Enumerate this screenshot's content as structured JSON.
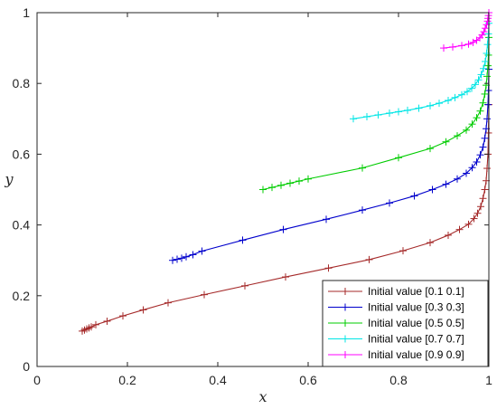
{
  "chart_data": {
    "type": "line",
    "xlabel": "x",
    "ylabel": "y",
    "xlim": [
      0,
      1
    ],
    "ylim": [
      0,
      1
    ],
    "xticks": [
      "0",
      "0.2",
      "0.4",
      "0.6",
      "0.8",
      "1"
    ],
    "yticks": [
      "0",
      "0.2",
      "0.4",
      "0.6",
      "0.8",
      "1"
    ],
    "grid": false,
    "legend_position": "bottom-right",
    "series": [
      {
        "name": "Initial value [0.1 0.1]",
        "color": "#a52a2a",
        "x": [
          0.1,
          0.105,
          0.11,
          0.115,
          0.12,
          0.13,
          0.155,
          0.19,
          0.235,
          0.29,
          0.37,
          0.46,
          0.55,
          0.645,
          0.735,
          0.81,
          0.87,
          0.91,
          0.935,
          0.955,
          0.967,
          0.975,
          0.982,
          0.987,
          0.991,
          0.994,
          0.996,
          0.998,
          0.999,
          1.0
        ],
        "y": [
          0.1,
          0.103,
          0.106,
          0.109,
          0.112,
          0.118,
          0.128,
          0.143,
          0.16,
          0.18,
          0.203,
          0.228,
          0.253,
          0.278,
          0.302,
          0.327,
          0.35,
          0.371,
          0.387,
          0.402,
          0.418,
          0.433,
          0.452,
          0.475,
          0.5,
          0.525,
          0.56,
          0.6,
          0.66,
          0.74
        ]
      },
      {
        "name": "Initial value [0.3 0.3]",
        "color": "#0000cc",
        "x": [
          0.3,
          0.31,
          0.32,
          0.33,
          0.345,
          0.365,
          0.455,
          0.545,
          0.64,
          0.72,
          0.78,
          0.835,
          0.875,
          0.905,
          0.93,
          0.95,
          0.963,
          0.973,
          0.981,
          0.987,
          0.991,
          0.994,
          0.996,
          0.998,
          0.999,
          1.0
        ],
        "y": [
          0.3,
          0.303,
          0.306,
          0.31,
          0.316,
          0.326,
          0.357,
          0.387,
          0.416,
          0.442,
          0.462,
          0.482,
          0.5,
          0.515,
          0.53,
          0.546,
          0.562,
          0.578,
          0.598,
          0.62,
          0.645,
          0.672,
          0.7,
          0.74,
          0.78,
          0.84
        ]
      },
      {
        "name": "Initial value [0.5 0.5]",
        "color": "#00cc00",
        "x": [
          0.5,
          0.52,
          0.54,
          0.56,
          0.58,
          0.6,
          0.72,
          0.8,
          0.87,
          0.905,
          0.93,
          0.95,
          0.963,
          0.973,
          0.981,
          0.987,
          0.991,
          0.994,
          0.996,
          0.998,
          0.999,
          1.0
        ],
        "y": [
          0.5,
          0.506,
          0.512,
          0.518,
          0.524,
          0.53,
          0.561,
          0.59,
          0.616,
          0.635,
          0.652,
          0.668,
          0.685,
          0.703,
          0.722,
          0.745,
          0.77,
          0.795,
          0.82,
          0.85,
          0.88,
          0.93
        ]
      },
      {
        "name": "Initial value [0.7 0.7]",
        "color": "#00e5e5",
        "x": [
          0.7,
          0.73,
          0.755,
          0.78,
          0.8,
          0.82,
          0.845,
          0.87,
          0.89,
          0.91,
          0.925,
          0.94,
          0.952,
          0.962,
          0.97,
          0.977,
          0.983,
          0.988,
          0.992,
          0.995,
          0.997,
          0.999,
          1.0
        ],
        "y": [
          0.7,
          0.706,
          0.711,
          0.716,
          0.72,
          0.724,
          0.73,
          0.737,
          0.744,
          0.752,
          0.76,
          0.768,
          0.777,
          0.786,
          0.797,
          0.81,
          0.825,
          0.842,
          0.862,
          0.885,
          0.91,
          0.94,
          0.97
        ]
      },
      {
        "name": "Initial value [0.9 0.9]",
        "color": "#ff00ff",
        "x": [
          0.9,
          0.92,
          0.94,
          0.955,
          0.965,
          0.973,
          0.98,
          0.985,
          0.989,
          0.992,
          0.995,
          0.997,
          0.998,
          0.999,
          1.0
        ],
        "y": [
          0.9,
          0.903,
          0.907,
          0.911,
          0.916,
          0.922,
          0.929,
          0.937,
          0.946,
          0.956,
          0.966,
          0.976,
          0.984,
          0.992,
          1.0
        ]
      }
    ]
  }
}
